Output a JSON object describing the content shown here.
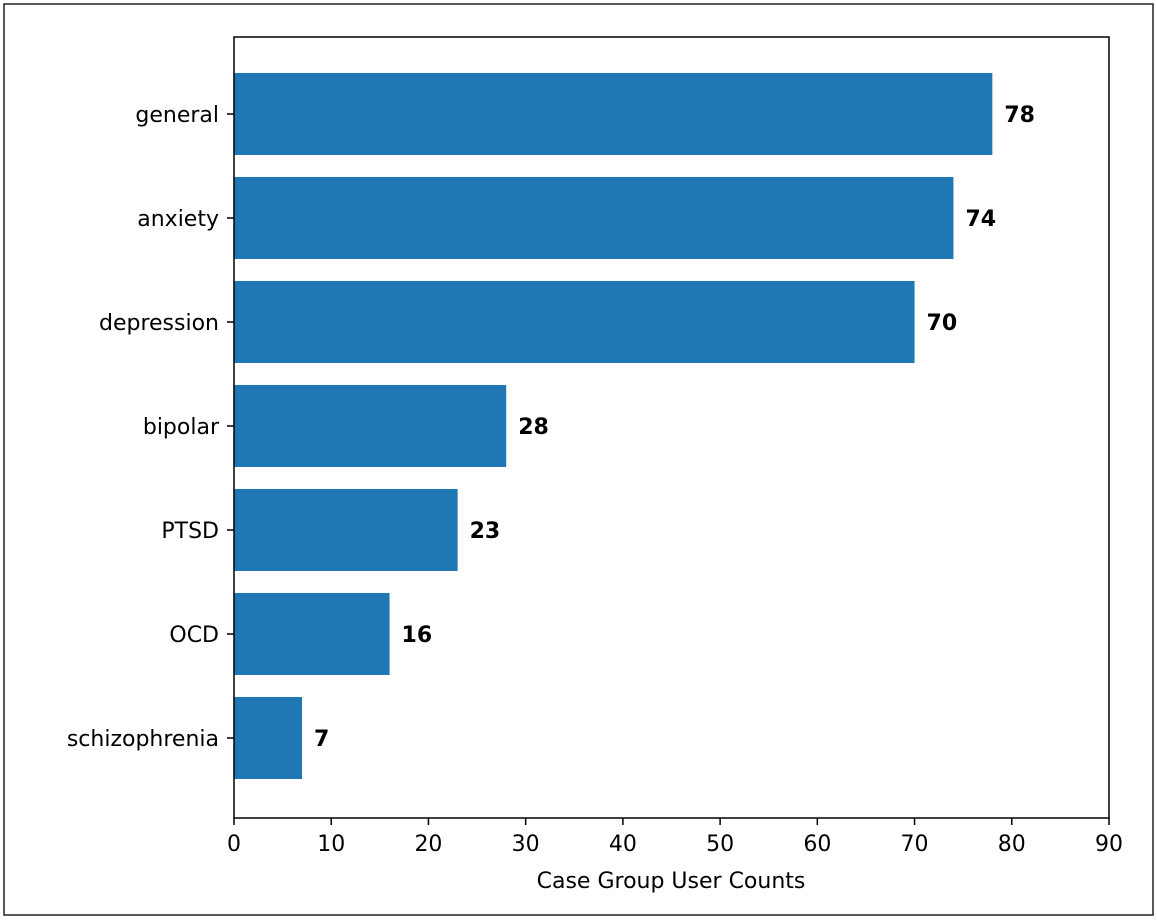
{
  "chart_data": {
    "type": "bar",
    "orientation": "horizontal",
    "categories": [
      "general",
      "anxiety",
      "depression",
      "bipolar",
      "PTSD",
      "OCD",
      "schizophrenia"
    ],
    "values": [
      78,
      74,
      70,
      28,
      23,
      16,
      7
    ],
    "data_labels": [
      "78",
      "74",
      "70",
      "28",
      "23",
      "16",
      "7"
    ],
    "title": "",
    "xlabel": "Case Group User Counts",
    "ylabel": "",
    "xlim": [
      0,
      90
    ],
    "xticks": [
      0,
      10,
      20,
      30,
      40,
      50,
      60,
      70,
      80,
      90
    ],
    "xtick_labels": [
      "0",
      "10",
      "20",
      "30",
      "40",
      "50",
      "60",
      "70",
      "80",
      "90"
    ],
    "grid": false,
    "legend": "none",
    "bar_color": "#1f77b4"
  }
}
